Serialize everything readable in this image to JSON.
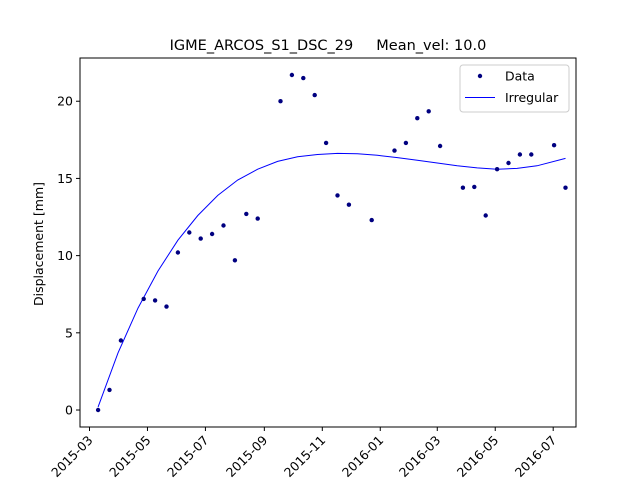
{
  "chart_data": {
    "type": "scatter",
    "title": "IGME_ARCOS_S1_DSC_29     Mean_vel: 10.0",
    "xlabel": "",
    "ylabel": "Displacement [mm]",
    "xlim": [
      "2015-02-19",
      "2016-07-25"
    ],
    "ylim": [
      -1.1,
      22.8
    ],
    "x_ticks": [
      "2015-03",
      "2015-05",
      "2015-07",
      "2015-09",
      "2015-11",
      "2016-01",
      "2016-03",
      "2016-05",
      "2016-07"
    ],
    "y_ticks": [
      0,
      5,
      10,
      15,
      20
    ],
    "grid": false,
    "legend_position": "top-right",
    "colors": {
      "data": "#000080",
      "fit": "#0000ff"
    },
    "series": [
      {
        "name": "Data",
        "kind": "points",
        "points": [
          [
            "2015-03-10",
            0.0
          ],
          [
            "2015-03-22",
            1.3
          ],
          [
            "2015-04-03",
            4.5
          ],
          [
            "2015-04-27",
            7.2
          ],
          [
            "2015-05-09",
            7.1
          ],
          [
            "2015-05-21",
            6.7
          ],
          [
            "2015-06-02",
            10.2
          ],
          [
            "2015-06-14",
            11.5
          ],
          [
            "2015-06-26",
            11.1
          ],
          [
            "2015-07-08",
            11.4
          ],
          [
            "2015-07-20",
            11.95
          ],
          [
            "2015-08-01",
            9.7
          ],
          [
            "2015-08-13",
            12.7
          ],
          [
            "2015-08-25",
            12.4
          ],
          [
            "2015-09-18",
            20.0
          ],
          [
            "2015-09-30",
            21.7
          ],
          [
            "2015-10-12",
            21.5
          ],
          [
            "2015-10-24",
            20.4
          ],
          [
            "2015-11-05",
            17.3
          ],
          [
            "2015-11-17",
            13.9
          ],
          [
            "2015-11-29",
            13.3
          ],
          [
            "2015-12-23",
            12.3
          ],
          [
            "2016-01-16",
            16.8
          ],
          [
            "2016-01-28",
            17.3
          ],
          [
            "2016-02-09",
            18.9
          ],
          [
            "2016-02-21",
            19.35
          ],
          [
            "2016-03-04",
            17.1
          ],
          [
            "2016-03-28",
            14.4
          ],
          [
            "2016-04-09",
            14.45
          ],
          [
            "2016-04-21",
            12.6
          ],
          [
            "2016-05-03",
            15.6
          ],
          [
            "2016-05-15",
            16.0
          ],
          [
            "2016-05-27",
            16.55
          ],
          [
            "2016-06-08",
            16.55
          ],
          [
            "2016-07-02",
            17.15
          ],
          [
            "2016-07-14",
            14.4
          ]
        ]
      },
      {
        "name": "Irregular",
        "kind": "line",
        "points": [
          [
            "2015-03-10",
            0.2
          ],
          [
            "2015-03-31",
            3.7
          ],
          [
            "2015-04-21",
            6.6
          ],
          [
            "2015-05-12",
            9.0
          ],
          [
            "2015-06-02",
            11.0
          ],
          [
            "2015-06-23",
            12.6
          ],
          [
            "2015-07-14",
            13.9
          ],
          [
            "2015-08-04",
            14.9
          ],
          [
            "2015-08-25",
            15.6
          ],
          [
            "2015-09-15",
            16.1
          ],
          [
            "2015-10-06",
            16.4
          ],
          [
            "2015-10-27",
            16.55
          ],
          [
            "2015-11-17",
            16.62
          ],
          [
            "2015-12-08",
            16.6
          ],
          [
            "2015-12-29",
            16.5
          ],
          [
            "2016-01-19",
            16.35
          ],
          [
            "2016-02-09",
            16.18
          ],
          [
            "2016-03-01",
            16.0
          ],
          [
            "2016-03-22",
            15.82
          ],
          [
            "2016-04-12",
            15.68
          ],
          [
            "2016-05-03",
            15.6
          ],
          [
            "2016-05-24",
            15.65
          ],
          [
            "2016-06-14",
            15.82
          ],
          [
            "2016-07-14",
            16.3
          ]
        ]
      }
    ]
  }
}
